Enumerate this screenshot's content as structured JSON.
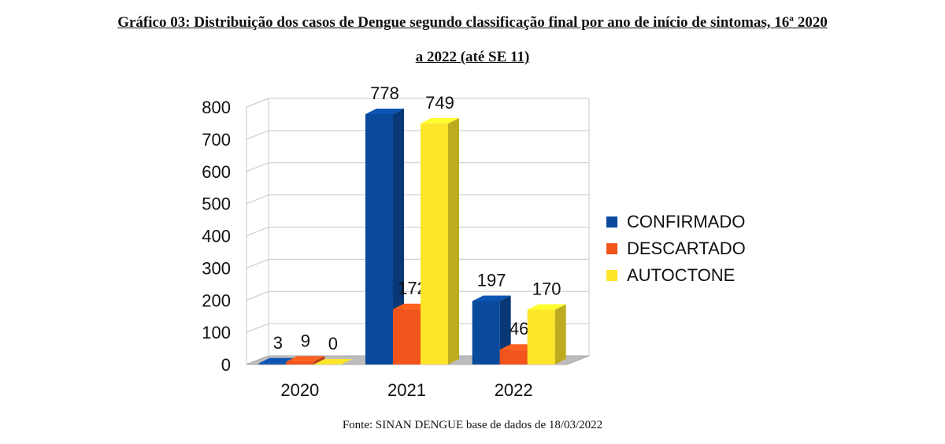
{
  "title_line1": "Gráfico 03: Distribuição dos casos de Dengue segundo classificação final por ano de início de sintomas, 16ª 2020",
  "title_line2": "a 2022 (até SE 11)",
  "source": "Fonte: SINAN DENGUE base de dados de 18/03/2022",
  "chart_data": {
    "type": "bar",
    "style": "3d-clustered-column",
    "title": "Gráfico 03: Distribuição dos casos de Dengue segundo classificação final por ano de início de sintomas, 16ª 2020 a 2022 (até SE 11)",
    "categories": [
      "2020",
      "2021",
      "2022"
    ],
    "series": [
      {
        "name": "CONFIRMADO",
        "color": "#0a4a9c",
        "values": [
          3,
          778,
          197
        ]
      },
      {
        "name": "DESCARTADO",
        "color": "#f2541b",
        "values": [
          9,
          172,
          46
        ]
      },
      {
        "name": "AUTOCTONE",
        "color": "#fde52a",
        "values": [
          0,
          749,
          170
        ]
      }
    ],
    "ylim": [
      0,
      800
    ],
    "yticks": [
      0,
      100,
      200,
      300,
      400,
      500,
      600,
      700,
      800
    ],
    "xlabel": "",
    "ylabel": "",
    "grid": true,
    "legend_position": "right"
  }
}
